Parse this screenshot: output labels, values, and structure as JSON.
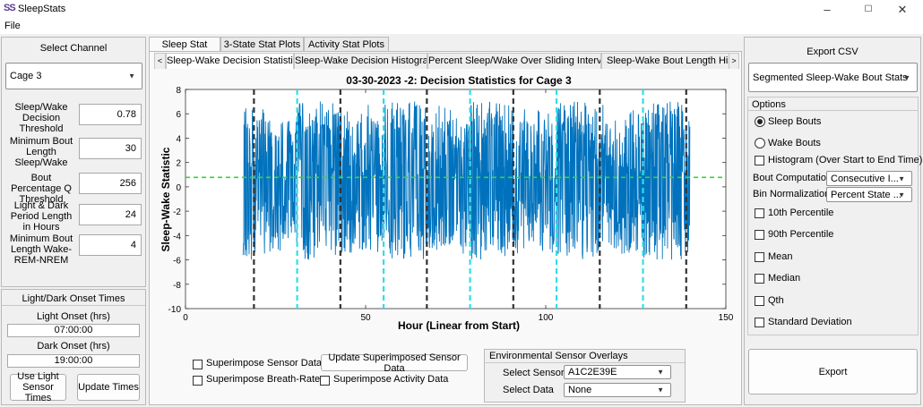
{
  "window": {
    "title": "SleepStats",
    "icon": "sleepstats-app-icon",
    "min": "–",
    "max": "☐",
    "close": "✕"
  },
  "menu": {
    "file": "File"
  },
  "left": {
    "select_channel_title": "Select Channel",
    "channel": "Cage 3",
    "params": [
      {
        "label": "Sleep/Wake Decision Threshold",
        "value": "0.78"
      },
      {
        "label": "Minimum Bout Length Sleep/Wake",
        "value": "30"
      },
      {
        "label": "Bout Percentage Q Threshold",
        "value": "256"
      },
      {
        "label": "Light & Dark Period Length in Hours",
        "value": "24"
      },
      {
        "label": "Minimum Bout Length Wake-REM-NREM",
        "value": "4"
      }
    ],
    "onset_title": "Light/Dark Onset Times",
    "light_onset_label": "Light Onset (hrs)",
    "light_onset": "07:00:00",
    "dark_onset_label": "Dark Onset (hrs)",
    "dark_onset": "19:00:00",
    "use_light_btn": "Use Light Sensor Times",
    "update_times_btn": "Update Times"
  },
  "tabs": [
    "Sleep Stat Plots",
    "3-State Stat Plots",
    "Activity Stat Plots"
  ],
  "subtabs": [
    "Sleep-Wake Decision Statistic",
    "Sleep-Wake Decision Histogram",
    "Percent Sleep/Wake Over Sliding Interval",
    "Sleep-Wake Bout Length Histogra"
  ],
  "chart_data": {
    "type": "line",
    "title": "03-30-2023 -2: Decision Statistics for Cage 3",
    "xlabel": "Hour (Linear from Start)",
    "ylabel": "Sleep-Wake Statistic",
    "xlim": [
      0,
      150
    ],
    "ylim": [
      -10,
      8
    ],
    "xticks": [
      0,
      50,
      100,
      150
    ],
    "yticks": [
      -10,
      -8,
      -6,
      -4,
      -2,
      0,
      2,
      4,
      6,
      8
    ],
    "data_range_x": [
      16,
      140
    ],
    "threshold": 0.78,
    "dark_lines_x": [
      19,
      43,
      67,
      91,
      115,
      139
    ],
    "cyan_lines_x": [
      31,
      55,
      79,
      103,
      127
    ],
    "series_color": "#0072BD",
    "dark_line_color": "#333333",
    "cyan_line_color": "#2de0e6",
    "threshold_color": "#3ad33a"
  },
  "bottom": {
    "superimpose_sensor": "Superimpose Sensor Data",
    "superimpose_breath": "Superimpose Breath-Rate",
    "update_superimposed": "Update Superimposed Sensor Data",
    "superimpose_activity": "Superimpose Activity Data",
    "env_title": "Environmental Sensor Overlays",
    "select_sensor_label": "Select Sensor",
    "sensor_value": "A1C2E39E",
    "select_data_label": "Select Data",
    "data_value": "None"
  },
  "right": {
    "export_csv_title": "Export CSV",
    "export_type": "Segmented Sleep-Wake Bout Stats",
    "options_title": "Options",
    "sleep_bouts": "Sleep Bouts",
    "wake_bouts": "Wake Bouts",
    "histogram": "Histogram (Over Start to End Time)",
    "bout_computation_label": "Bout Computation",
    "bout_computation_value": "Consecutive I...",
    "bin_norm_label": "Bin Normalization",
    "bin_norm_value": "Percent State ...",
    "checks": [
      "10th Percentile",
      "90th Percentile",
      "Mean",
      "Median",
      "Qth",
      "Standard Deviation"
    ],
    "export_btn": "Export"
  }
}
